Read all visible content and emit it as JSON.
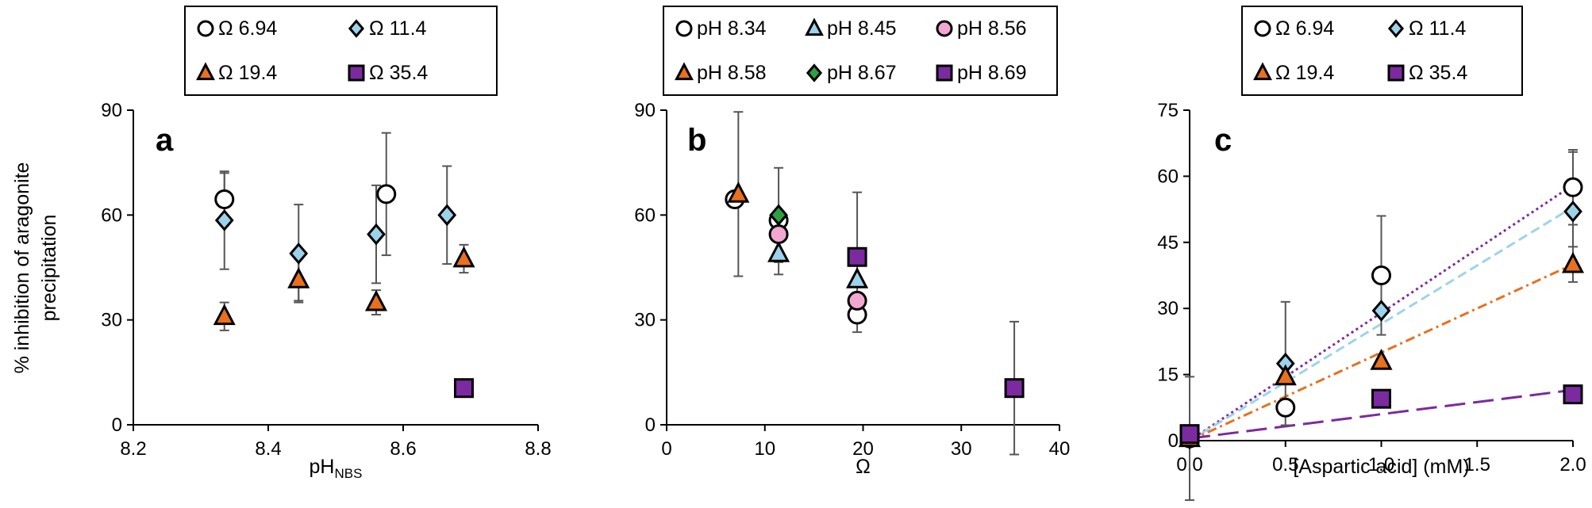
{
  "chart_data": [
    {
      "panel": "a",
      "type": "scatter",
      "xlabel_main": "pH",
      "xlabel_sub": "NBS",
      "ylabel_line1": "% inhibition of aragonite",
      "ylabel_line2": "precipitation",
      "xlim": [
        8.2,
        8.8
      ],
      "ylim": [
        0,
        90
      ],
      "xticks": [
        8.2,
        8.4,
        8.6,
        8.8
      ],
      "xtick_labels": [
        "8.2",
        "8.4",
        "8.6",
        "8.8"
      ],
      "yticks": [
        0,
        30,
        60,
        90
      ],
      "ytick_labels": [
        "0",
        "30",
        "60",
        "90"
      ],
      "grid": false,
      "legend_cols": 2,
      "series": [
        {
          "name": "Ω 6.94",
          "marker": "circle",
          "color": "#ffffff",
          "x": [
            8.335,
            8.575
          ],
          "y": [
            64.5,
            66
          ],
          "err": [
            7.5,
            17.5
          ]
        },
        {
          "name": "Ω 11.4",
          "marker": "diamond",
          "color": "#9dd3ea",
          "x": [
            8.335,
            8.445,
            8.56,
            8.665
          ],
          "y": [
            58.5,
            49,
            54.5,
            60
          ],
          "err": [
            14,
            14,
            14,
            14
          ]
        },
        {
          "name": "Ω 19.4",
          "marker": "triangle",
          "color": "#e8701e",
          "x": [
            8.335,
            8.445,
            8.56,
            8.69
          ],
          "y": [
            31,
            41.5,
            35,
            47.5
          ],
          "err": [
            4,
            6,
            3.5,
            4
          ]
        },
        {
          "name": "Ω 35.4",
          "marker": "square",
          "color": "#7b2aa0",
          "x": [
            8.69
          ],
          "y": [
            10.5
          ],
          "err": [
            0
          ]
        }
      ]
    },
    {
      "panel": "b",
      "type": "scatter",
      "xlabel_main": "Ω",
      "xlabel_sub": "",
      "xlim": [
        0,
        40
      ],
      "ylim": [
        0,
        90
      ],
      "xticks": [
        0,
        10,
        20,
        30,
        40
      ],
      "xtick_labels": [
        "0",
        "10",
        "20",
        "30",
        "40"
      ],
      "yticks": [
        0,
        30,
        60,
        90
      ],
      "ytick_labels": [
        "0",
        "30",
        "60",
        "90"
      ],
      "grid": false,
      "legend_cols": 3,
      "series": [
        {
          "name": "pH 8.34",
          "marker": "circle",
          "color": "#ffffff",
          "x": [
            6.94,
            11.4,
            19.4
          ],
          "y": [
            64.5,
            58.5,
            31.5
          ],
          "err": [
            0,
            0,
            5
          ]
        },
        {
          "name": "pH 8.45",
          "marker": "triangle",
          "color": "#9dd3ea",
          "x": [
            11.4,
            19.4
          ],
          "y": [
            49,
            41.5
          ],
          "err": [
            6,
            0
          ]
        },
        {
          "name": "pH 8.56",
          "marker": "circle",
          "color": "#f2a7d0",
          "x": [
            11.4,
            19.4
          ],
          "y": [
            54.5,
            35.5
          ],
          "err": [
            0,
            0
          ]
        },
        {
          "name": "pH 8.58",
          "marker": "triangle",
          "color": "#e8701e",
          "x": [
            7.3
          ],
          "y": [
            66
          ],
          "err": [
            23.5
          ]
        },
        {
          "name": "pH 8.67",
          "marker": "diamond",
          "color": "#2ea043",
          "x": [
            11.4
          ],
          "y": [
            60
          ],
          "err": [
            13.5
          ]
        },
        {
          "name": "pH 8.69",
          "marker": "square",
          "color": "#7b2aa0",
          "x": [
            19.4,
            35.4
          ],
          "y": [
            48,
            10.5
          ],
          "err": [
            18.5,
            19
          ]
        }
      ]
    },
    {
      "panel": "c",
      "type": "scatter",
      "xlabel_main": "[Aspartic acid] (mM)",
      "xlabel_sub": "",
      "xlim": [
        0,
        2
      ],
      "ylim": [
        0,
        75
      ],
      "xticks": [
        0,
        0.5,
        1.0,
        1.5,
        2.0
      ],
      "xtick_labels": [
        "0.0",
        "0.5",
        "1.0",
        "1.5",
        "2.0"
      ],
      "yticks": [
        0,
        15,
        30,
        45,
        60,
        75
      ],
      "ytick_labels": [
        "0",
        "15",
        "30",
        "45",
        "60",
        "75"
      ],
      "grid": false,
      "legend_cols": 2,
      "series": [
        {
          "name": "Ω 6.94",
          "marker": "circle",
          "color": "#ffffff",
          "x": [
            0,
            0.5,
            1.0,
            2.0
          ],
          "y": [
            0.5,
            7.5,
            37.5,
            57.5
          ],
          "err": [
            14,
            0,
            13.5,
            8.5
          ],
          "fit": [
            0,
            29
          ],
          "fit_color": "#7b2aa0",
          "fit_dash": "3,4"
        },
        {
          "name": "Ω 11.4",
          "marker": "diamond",
          "color": "#9dd3ea",
          "x": [
            0,
            0.5,
            1.0,
            2.0
          ],
          "y": [
            0.5,
            17.5,
            29.5,
            52
          ],
          "err": [
            0,
            14,
            0,
            13.5
          ],
          "fit": [
            0,
            26.5
          ],
          "fit_color": "#9dd3ea",
          "fit_dash": "12,6"
        },
        {
          "name": "Ω 19.4",
          "marker": "triangle",
          "color": "#e8701e",
          "x": [
            0,
            0.5,
            1.0,
            2.0
          ],
          "y": [
            0.5,
            14.5,
            18,
            40
          ],
          "err": [
            0,
            0,
            0,
            4
          ],
          "fit": [
            0,
            20
          ],
          "fit_color": "#e8701e",
          "fit_dash": "12,5,3,5"
        },
        {
          "name": "Ω 35.4",
          "marker": "square",
          "color": "#7b2aa0",
          "x": [
            0,
            1.0,
            2.0
          ],
          "y": [
            1.5,
            9.5,
            10.5
          ],
          "err": [
            0,
            0,
            0
          ],
          "fit": [
            0.5,
            5.5
          ],
          "fit_color": "#7b2aa0",
          "fit_dash": "26,10"
        }
      ]
    }
  ]
}
